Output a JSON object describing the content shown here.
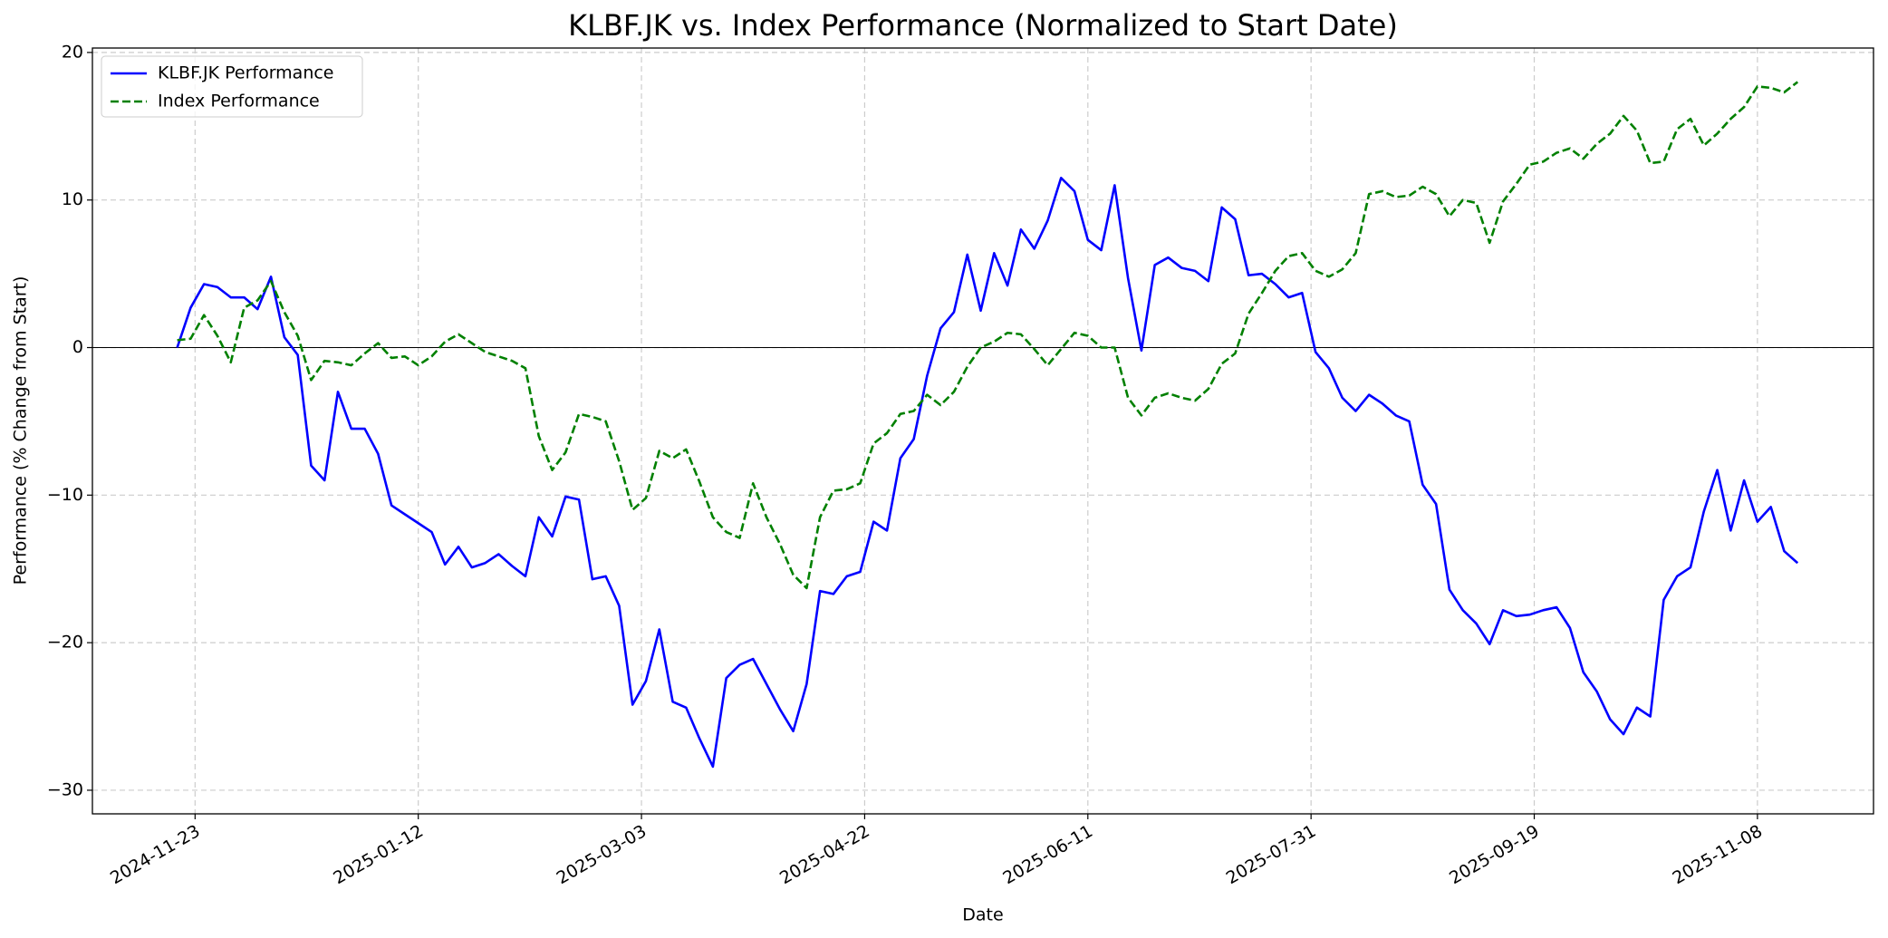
{
  "chart_data": {
    "type": "line",
    "title": "KLBF.JK vs. Index Performance (Normalized to Start Date)",
    "xlabel": "Date",
    "ylabel": "Performance (% Change from Start)",
    "x": [
      "2024-11-19",
      "2024-11-22",
      "2024-11-25",
      "2024-11-28",
      "2024-12-01",
      "2024-12-04",
      "2024-12-07",
      "2024-12-10",
      "2024-12-13",
      "2024-12-16",
      "2024-12-19",
      "2024-12-22",
      "2024-12-25",
      "2024-12-28",
      "2024-12-31",
      "2025-01-03",
      "2025-01-06",
      "2025-01-09",
      "2025-01-12",
      "2025-01-15",
      "2025-01-18",
      "2025-01-21",
      "2025-01-24",
      "2025-01-27",
      "2025-01-30",
      "2025-02-02",
      "2025-02-05",
      "2025-02-08",
      "2025-02-11",
      "2025-02-14",
      "2025-02-17",
      "2025-02-20",
      "2025-02-23",
      "2025-02-26",
      "2025-03-01",
      "2025-03-04",
      "2025-03-07",
      "2025-03-10",
      "2025-03-13",
      "2025-03-16",
      "2025-03-19",
      "2025-03-22",
      "2025-03-25",
      "2025-03-28",
      "2025-03-31",
      "2025-04-03",
      "2025-04-06",
      "2025-04-09",
      "2025-04-12",
      "2025-04-15",
      "2025-04-18",
      "2025-04-21",
      "2025-04-24",
      "2025-04-27",
      "2025-04-30",
      "2025-05-03",
      "2025-05-06",
      "2025-05-09",
      "2025-05-12",
      "2025-05-15",
      "2025-05-18",
      "2025-05-21",
      "2025-05-24",
      "2025-05-27",
      "2025-05-30",
      "2025-06-02",
      "2025-06-05",
      "2025-06-08",
      "2025-06-11",
      "2025-06-14",
      "2025-06-17",
      "2025-06-20",
      "2025-06-23",
      "2025-06-26",
      "2025-06-29",
      "2025-07-02",
      "2025-07-05",
      "2025-07-08",
      "2025-07-11",
      "2025-07-14",
      "2025-07-17",
      "2025-07-20",
      "2025-07-23",
      "2025-07-26",
      "2025-07-29",
      "2025-08-01",
      "2025-08-04",
      "2025-08-07",
      "2025-08-10",
      "2025-08-13",
      "2025-08-16",
      "2025-08-19",
      "2025-08-22",
      "2025-08-25",
      "2025-08-28",
      "2025-08-31",
      "2025-09-03",
      "2025-09-06",
      "2025-09-09",
      "2025-09-12",
      "2025-09-15",
      "2025-09-18",
      "2025-09-21",
      "2025-09-24",
      "2025-09-27",
      "2025-09-30",
      "2025-10-03",
      "2025-10-06",
      "2025-10-09",
      "2025-10-12",
      "2025-10-15",
      "2025-10-18",
      "2025-10-21",
      "2025-10-24",
      "2025-10-27",
      "2025-10-30",
      "2025-11-02",
      "2025-11-05",
      "2025-11-08",
      "2025-11-11",
      "2025-11-14",
      "2025-11-17"
    ],
    "series": [
      {
        "name": "KLBF.JK Performance",
        "color": "#0000ff",
        "dash": false,
        "values": [
          0,
          2.7,
          4.3,
          4.1,
          3.4,
          3.4,
          2.6,
          4.8,
          0.7,
          -0.5,
          -8,
          -9,
          -3,
          -5.5,
          -5.5,
          -7.2,
          -10.7,
          -11.3,
          -11.9,
          -12.5,
          -14.7,
          -13.5,
          -14.9,
          -14.6,
          -14,
          -14.8,
          -15.5,
          -11.5,
          -12.8,
          -10.1,
          -10.3,
          -15.7,
          -15.5,
          -17.5,
          -24.2,
          -22.6,
          -19.1,
          -24,
          -24.4,
          -26.5,
          -28.4,
          -22.4,
          -21.5,
          -21.1,
          -22.8,
          -24.5,
          -26,
          -22.8,
          -16.5,
          -16.7,
          -15.5,
          -15.2,
          -11.8,
          -12.4,
          -7.5,
          -6.2,
          -1.9,
          1.3,
          2.4,
          6.3,
          2.5,
          6.4,
          4.2,
          8,
          6.7,
          8.6,
          11.5,
          10.6,
          7.3,
          6.6,
          11,
          4.7,
          -0.2,
          5.6,
          6.1,
          5.4,
          5.2,
          4.5,
          9.5,
          8.7,
          4.9,
          5,
          4.3,
          3.4,
          3.7,
          -0.3,
          -1.4,
          -3.4,
          -4.3,
          -3.2,
          -3.8,
          -4.6,
          -5,
          -9.3,
          -10.6,
          -16.4,
          -17.8,
          -18.7,
          -20.1,
          -17.8,
          -18.2,
          -18.1,
          -17.8,
          -17.6,
          -19,
          -22,
          -23.3,
          -25.2,
          -26.2,
          -24.4,
          -25,
          -17.1,
          -15.5,
          -14.9,
          -11.1,
          -8.3,
          -12.4,
          -9,
          -11.8,
          -10.8,
          -13.8,
          -14.6
        ]
      },
      {
        "name": "Index Performance",
        "color": "#008000",
        "dash": true,
        "values": [
          0.5,
          0.6,
          2.2,
          0.8,
          -1,
          2.7,
          3.2,
          4.5,
          2.4,
          0.8,
          -2.2,
          -0.9,
          -1,
          -1.2,
          -0.4,
          0.3,
          -0.7,
          -0.6,
          -1.2,
          -0.6,
          0.4,
          0.9,
          0.3,
          -0.3,
          -0.6,
          -0.9,
          -1.4,
          -6,
          -8.3,
          -7.1,
          -4.5,
          -4.7,
          -5,
          -7.7,
          -11,
          -10.2,
          -7,
          -7.5,
          -6.9,
          -9.1,
          -11.5,
          -12.5,
          -12.9,
          -9.2,
          -11.5,
          -13.3,
          -15.4,
          -16.3,
          -11.5,
          -9.7,
          -9.6,
          -9.2,
          -6.5,
          -5.8,
          -4.5,
          -4.3,
          -3.2,
          -3.9,
          -3,
          -1.3,
          0,
          0.4,
          1,
          0.9,
          -0.1,
          -1.2,
          -0.1,
          1,
          0.8,
          0,
          0,
          -3.4,
          -4.6,
          -3.4,
          -3.1,
          -3.4,
          -3.6,
          -2.8,
          -1.1,
          -0.4,
          2.3,
          3.7,
          5.2,
          6.2,
          6.4,
          5.2,
          4.8,
          5.3,
          6.4,
          10.4,
          10.6,
          10.2,
          10.3,
          10.9,
          10.4,
          8.9,
          10,
          9.8,
          7.1,
          9.9,
          11.1,
          12.4,
          12.6,
          13.2,
          13.5,
          12.8,
          13.8,
          14.5,
          15.7,
          14.7,
          12.5,
          12.6,
          14.8,
          15.5,
          13.7,
          14.5,
          15.5,
          16.3,
          17.7,
          17.6,
          17.3,
          18
        ]
      }
    ],
    "xlim": [
      "2024-10-31",
      "2025-12-04"
    ],
    "xticks": [
      "2024-11-23",
      "2025-01-12",
      "2025-03-03",
      "2025-04-22",
      "2025-06-11",
      "2025-07-31",
      "2025-09-19",
      "2025-11-08"
    ],
    "ylim": [
      -31.6,
      20.3
    ],
    "yticks": [
      {
        "value": -30,
        "label": "−30"
      },
      {
        "value": -20,
        "label": "−20"
      },
      {
        "value": -10,
        "label": "−10"
      },
      0,
      10,
      20
    ],
    "hline": 0,
    "grid": true,
    "legend": "upper left"
  }
}
